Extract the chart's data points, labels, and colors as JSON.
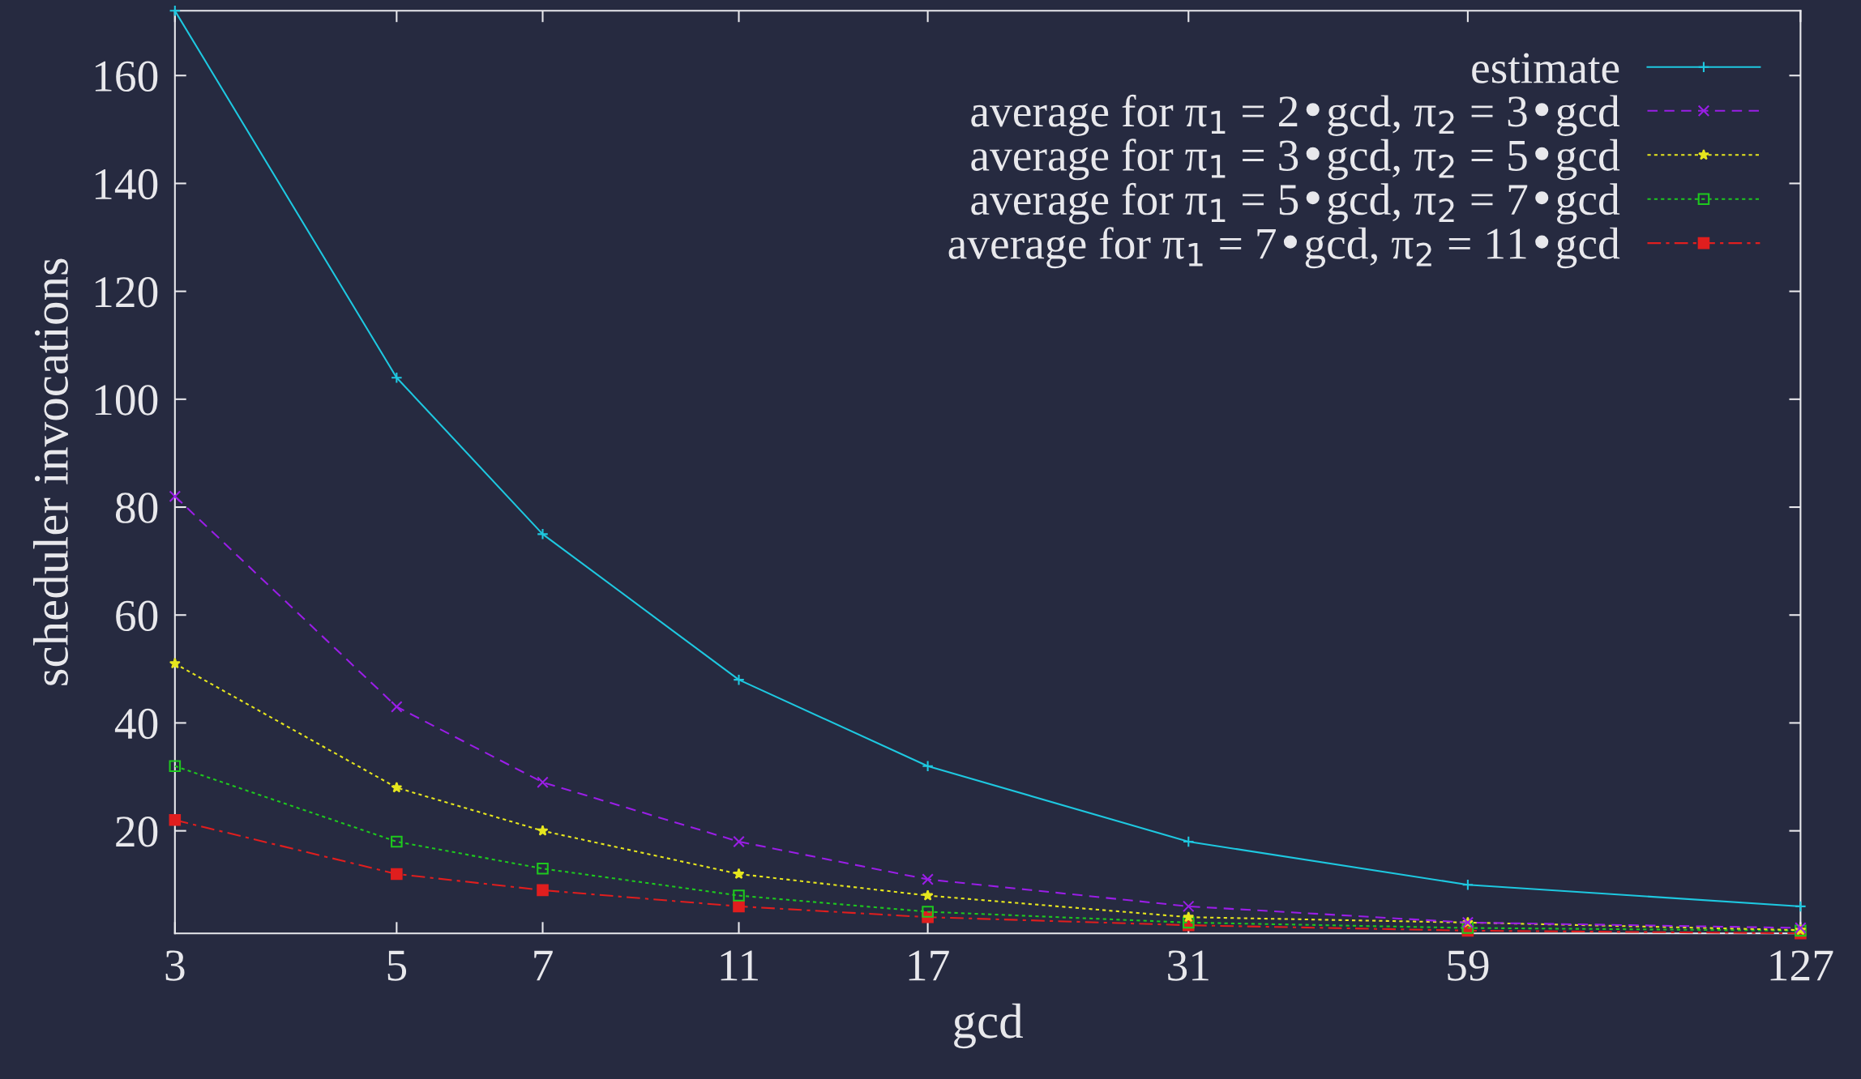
{
  "chart_data": {
    "type": "line",
    "xlabel": "gcd",
    "ylabel": "scheduler invocations",
    "log": "x",
    "x": [
      3,
      5,
      7,
      11,
      17,
      31,
      59,
      127
    ],
    "xlim": [
      3,
      127
    ],
    "xticks": [
      3,
      5,
      7,
      11,
      17,
      31,
      59,
      127
    ],
    "ylim": [
      1,
      172
    ],
    "yticks": [
      20,
      40,
      60,
      80,
      100,
      120,
      140,
      160
    ],
    "grid": false,
    "legend": "top right",
    "series": [
      {
        "name": "estimate",
        "color": "#1ec8e0",
        "marker": "cross",
        "line_style": "solid",
        "values": [
          172,
          104,
          75,
          48,
          32,
          18,
          10,
          6
        ]
      },
      {
        "name": "average for π$_{1}$ = 2•gcd, π$_{2}$ = 3•gcd",
        "color": "#9a1ee6",
        "marker": "x",
        "line_style": "dashed",
        "values": [
          82,
          43,
          29,
          18,
          11,
          6,
          3,
          2
        ]
      },
      {
        "name": "average for π$_{1}$ = 3•gcd, π$_{2}$ = 5•gcd",
        "color": "#e6e61e",
        "marker": "star",
        "line_style": "dotted",
        "values": [
          51,
          28,
          20,
          12,
          8,
          4,
          3,
          1.6
        ]
      },
      {
        "name": "average for π$_{1}$ = 5•gcd, π$_{2}$ = 7•gcd",
        "color": "#1ec81e",
        "marker": "square",
        "line_style": "dotted",
        "values": [
          32,
          18,
          13,
          8,
          5,
          3,
          2,
          1.5
        ]
      },
      {
        "name": "average for π$_{1}$ = 7•gcd, π$_{2}$ = 11•gcd",
        "color": "#e01e1e",
        "marker": "square_filled",
        "line_style": "dashdot",
        "values": [
          22,
          12,
          9,
          6,
          4,
          2.5,
          1.5,
          1
        ]
      }
    ]
  }
}
